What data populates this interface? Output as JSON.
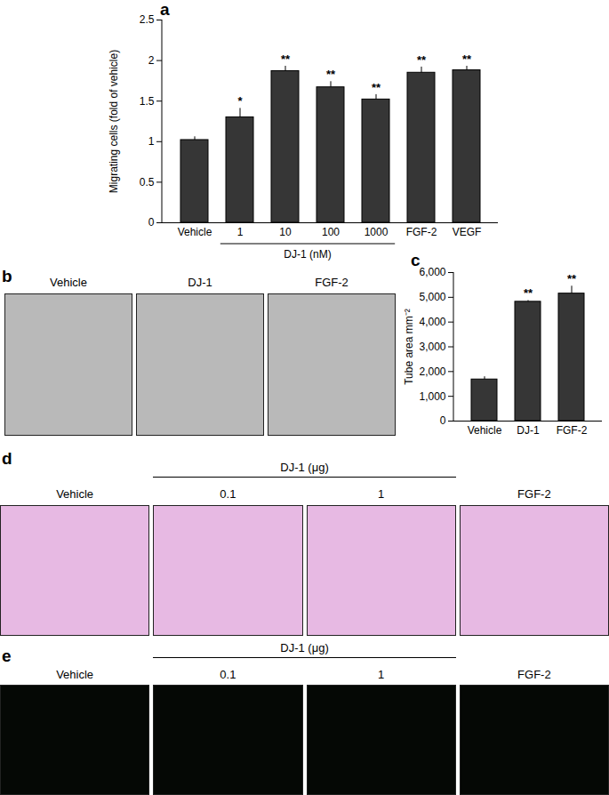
{
  "chart_data": [
    {
      "panel": "a",
      "type": "bar",
      "categories": [
        "Vehicle",
        "1",
        "10",
        "100",
        "1000",
        "FGF-2",
        "VEGF"
      ],
      "values": [
        1.02,
        1.3,
        1.87,
        1.67,
        1.52,
        1.85,
        1.88
      ],
      "errors": [
        0.04,
        0.11,
        0.06,
        0.07,
        0.06,
        0.07,
        0.05
      ],
      "significance": [
        null,
        "*",
        "**",
        "**",
        "**",
        "**",
        "**"
      ],
      "group": {
        "label": "DJ-1 (nM)",
        "categories": [
          "1",
          "10",
          "100",
          "1000"
        ]
      },
      "ylabel": "Migrating cells (fold of vehicle)",
      "color": "#363636",
      "ylim": [
        0,
        2.5
      ],
      "yticks": [
        0,
        0.5,
        1,
        1.5,
        2,
        2.5
      ],
      "grid": false
    },
    {
      "panel": "c",
      "type": "bar",
      "categories": [
        "Vehicle",
        "DJ-1",
        "FGF-2"
      ],
      "values": [
        1680,
        4820,
        5150
      ],
      "errors": [
        110,
        50,
        300
      ],
      "significance": [
        null,
        "**",
        "**"
      ],
      "ylabel": "Tube area mm⁻²",
      "color": "#363636",
      "ylim": [
        0,
        6000
      ],
      "yticks": [
        0,
        {
          "value": 1000,
          "label": "1,000"
        },
        {
          "value": 2000,
          "label": "2,000"
        },
        {
          "value": 3000,
          "label": "3,000"
        },
        {
          "value": 4000,
          "label": "4,000"
        },
        {
          "value": 5000,
          "label": "5,000"
        },
        {
          "value": 6000,
          "label": "6,000"
        }
      ],
      "grid": false
    }
  ],
  "image_panels": [
    {
      "panel": "b",
      "labels": [
        "Vehicle",
        "DJ-1",
        "FGF-2"
      ]
    },
    {
      "panel": "d",
      "labels": [
        "Vehicle",
        "0.1",
        "1",
        "FGF-2"
      ],
      "group": {
        "label": "DJ-1 (μg)",
        "labels": [
          "0.1",
          "1"
        ]
      }
    },
    {
      "panel": "e",
      "labels": [
        "Vehicle",
        "0.1",
        "1",
        "FGF-2"
      ],
      "group": {
        "label": "DJ-1 (μg)",
        "labels": [
          "0.1",
          "1"
        ]
      }
    }
  ]
}
